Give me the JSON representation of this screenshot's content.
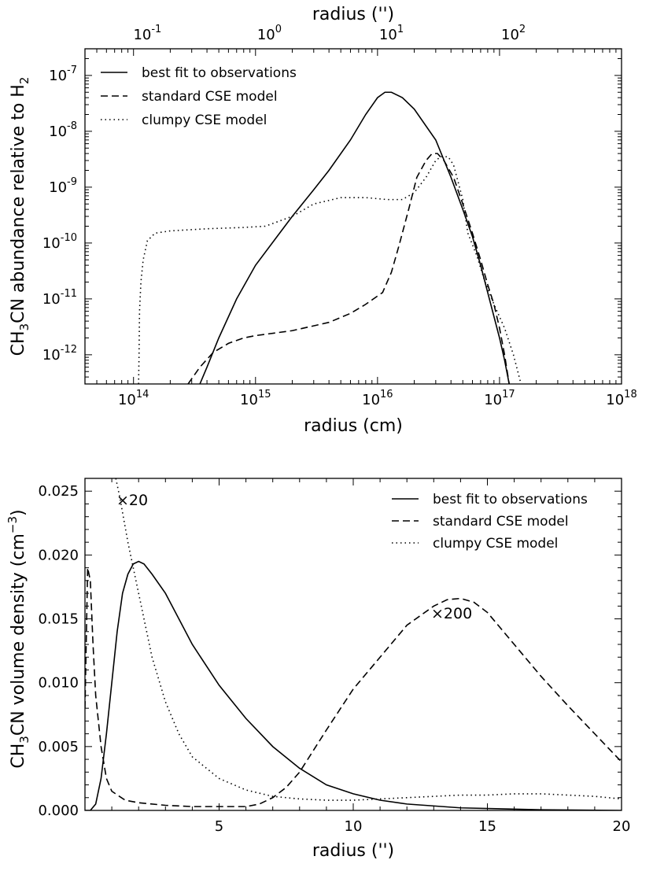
{
  "chart_data": [
    {
      "type": "line",
      "title": "",
      "xscale": "log",
      "yscale": "log",
      "xlabel": "radius (cm)",
      "ylabel_parts": [
        "CH",
        "3",
        "CN abundance relative to H",
        "2"
      ],
      "top_xlabel": "radius ('')",
      "xlim": [
        40000000000000.0,
        1e+18
      ],
      "ylim": [
        3e-13,
        3e-07
      ],
      "x_ticks": [
        {
          "value": 100000000000000.0,
          "base": "10",
          "exp": "14"
        },
        {
          "value": 1000000000000000.0,
          "base": "10",
          "exp": "15"
        },
        {
          "value": 1e+16,
          "base": "10",
          "exp": "16"
        },
        {
          "value": 1e+17,
          "base": "10",
          "exp": "17"
        },
        {
          "value": 1e+18,
          "base": "10",
          "exp": "18"
        }
      ],
      "y_ticks": [
        {
          "value": 1e-12,
          "base": "10",
          "exp": "-12"
        },
        {
          "value": 1e-11,
          "base": "10",
          "exp": "-11"
        },
        {
          "value": 1e-10,
          "base": "10",
          "exp": "-10"
        },
        {
          "value": 1e-09,
          "base": "10",
          "exp": "-9"
        },
        {
          "value": 1e-08,
          "base": "10",
          "exp": "-8"
        },
        {
          "value": 1e-07,
          "base": "10",
          "exp": "-7"
        }
      ],
      "top_ticks": [
        {
          "value": 130000000000000.0,
          "base": "10",
          "exp": "-1"
        },
        {
          "value": 1300000000000000.0,
          "base": "10",
          "exp": "0"
        },
        {
          "value": 1.3e+16,
          "base": "10",
          "exp": "1"
        },
        {
          "value": 1.3e+17,
          "base": "10",
          "exp": "2"
        }
      ],
      "legend": {
        "position": "top-left"
      },
      "series": [
        {
          "name": "best fit to observations",
          "style": "solid",
          "points": [
            [
              350000000000000.0,
              3e-13
            ],
            [
              400000000000000.0,
              6e-13
            ],
            [
              500000000000000.0,
              2e-12
            ],
            [
              700000000000000.0,
              1e-11
            ],
            [
              1000000000000000.0,
              4e-11
            ],
            [
              1500000000000000.0,
              1.3e-10
            ],
            [
              2000000000000000.0,
              3e-10
            ],
            [
              3000000000000000.0,
              9e-10
            ],
            [
              4000000000000000.0,
              2e-09
            ],
            [
              6000000000000000.0,
              7e-09
            ],
            [
              8000000000000000.0,
              2e-08
            ],
            [
              1e+16,
              4e-08
            ],
            [
              1.15e+16,
              5e-08
            ],
            [
              1.3e+16,
              5e-08
            ],
            [
              1.6e+16,
              4e-08
            ],
            [
              2e+16,
              2.5e-08
            ],
            [
              3e+16,
              7e-09
            ],
            [
              4e+16,
              1.5e-09
            ],
            [
              5e+16,
              4e-10
            ],
            [
              6e+16,
              1.3e-10
            ],
            [
              7e+16,
              4e-11
            ],
            [
              8e+16,
              1.3e-11
            ],
            [
              1e+17,
              2e-12
            ],
            [
              1.1e+17,
              8e-13
            ],
            [
              1.2e+17,
              3e-13
            ]
          ]
        },
        {
          "name": "standard CSE model",
          "style": "dashed",
          "points": [
            [
              280000000000000.0,
              3e-13
            ],
            [
              350000000000000.0,
              6e-13
            ],
            [
              450000000000000.0,
              1.1e-12
            ],
            [
              600000000000000.0,
              1.6e-12
            ],
            [
              800000000000000.0,
              2e-12
            ],
            [
              1000000000000000.0,
              2.2e-12
            ],
            [
              2000000000000000.0,
              2.7e-12
            ],
            [
              4000000000000000.0,
              3.8e-12
            ],
            [
              6000000000000000.0,
              5.5e-12
            ],
            [
              8000000000000000.0,
              8e-12
            ],
            [
              1.1e+16,
              1.3e-11
            ],
            [
              1.3e+16,
              3e-11
            ],
            [
              1.5e+16,
              9e-11
            ],
            [
              1.8e+16,
              4e-10
            ],
            [
              2.1e+16,
              1.5e-09
            ],
            [
              2.5e+16,
              3e-09
            ],
            [
              2.8e+16,
              4e-09
            ],
            [
              3.1e+16,
              4e-09
            ],
            [
              3.5e+16,
              3e-09
            ],
            [
              4.2e+16,
              1.5e-09
            ],
            [
              5e+16,
              5e-10
            ],
            [
              6e+16,
              1.5e-10
            ],
            [
              7e+16,
              5e-11
            ],
            [
              8e+16,
              1.8e-11
            ],
            [
              9e+16,
              8e-12
            ],
            [
              1e+17,
              3e-12
            ],
            [
              1.1e+17,
              1e-12
            ],
            [
              1.2e+17,
              3e-13
            ]
          ]
        },
        {
          "name": "clumpy CSE model",
          "style": "dotted",
          "points": [
            [
              110000000000000.0,
              3e-13
            ],
            [
              111000000000000.0,
              1e-12
            ],
            [
              112000000000000.0,
              6e-12
            ],
            [
              115000000000000.0,
              2e-11
            ],
            [
              120000000000000.0,
              5e-11
            ],
            [
              130000000000000.0,
              1.1e-10
            ],
            [
              150000000000000.0,
              1.5e-10
            ],
            [
              200000000000000.0,
              1.65e-10
            ],
            [
              400000000000000.0,
              1.8e-10
            ],
            [
              800000000000000.0,
              1.9e-10
            ],
            [
              1200000000000000.0,
              2e-10
            ],
            [
              2000000000000000.0,
              3e-10
            ],
            [
              3000000000000000.0,
              5e-10
            ],
            [
              5000000000000000.0,
              6.5e-10
            ],
            [
              8000000000000000.0,
              6.5e-10
            ],
            [
              1.2e+16,
              6e-10
            ],
            [
              1.6e+16,
              6e-10
            ],
            [
              2e+16,
              8e-10
            ],
            [
              2.5e+16,
              1.5e-09
            ],
            [
              3e+16,
              3e-09
            ],
            [
              3.3e+16,
              3.5e-09
            ],
            [
              3.8e+16,
              3.5e-09
            ],
            [
              4.2e+16,
              2.5e-09
            ],
            [
              5e+16,
              6e-10
            ],
            [
              5.5e+16,
              1.5e-10
            ],
            [
              6.5e+16,
              6e-11
            ],
            [
              7.5e+16,
              2.2e-11
            ],
            [
              9e+16,
              8e-12
            ],
            [
              1.1e+17,
              3e-12
            ],
            [
              1.3e+17,
              1e-12
            ],
            [
              1.5e+17,
              3e-13
            ]
          ]
        }
      ]
    },
    {
      "type": "line",
      "title": "",
      "xlabel": "radius ('')",
      "ylabel_parts": [
        "CH",
        "3",
        "CN volume density (cm",
        "−3",
        ")"
      ],
      "xlim": [
        0,
        20
      ],
      "ylim": [
        0,
        0.026
      ],
      "x_ticks": [
        5,
        10,
        15,
        20
      ],
      "y_ticks": [
        "0.000",
        "0.005",
        "0.010",
        "0.015",
        "0.020",
        "0.025"
      ],
      "legend": {
        "position": "top-right"
      },
      "annotations": [
        "×20",
        "×200"
      ],
      "series": [
        {
          "name": "best fit to observations",
          "style": "solid",
          "points": [
            [
              0,
              0
            ],
            [
              0.2,
              0
            ],
            [
              0.4,
              0.0005
            ],
            [
              0.6,
              0.0025
            ],
            [
              0.8,
              0.006
            ],
            [
              1,
              0.01
            ],
            [
              1.2,
              0.014
            ],
            [
              1.4,
              0.017
            ],
            [
              1.6,
              0.0185
            ],
            [
              1.8,
              0.0193
            ],
            [
              2,
              0.0195
            ],
            [
              2.2,
              0.0193
            ],
            [
              2.5,
              0.0185
            ],
            [
              3,
              0.017
            ],
            [
              3.5,
              0.015
            ],
            [
              4,
              0.013
            ],
            [
              5,
              0.0098
            ],
            [
              6,
              0.0072
            ],
            [
              7,
              0.005
            ],
            [
              8,
              0.0033
            ],
            [
              9,
              0.002
            ],
            [
              10,
              0.0013
            ],
            [
              11,
              0.0008
            ],
            [
              12,
              0.0005
            ],
            [
              14,
              0.0002
            ],
            [
              17,
              5e-05
            ],
            [
              20,
              0
            ]
          ]
        },
        {
          "name": "standard CSE model",
          "style": "dashed",
          "points": [
            [
              0,
              0.008
            ],
            [
              0.1,
              0.019
            ],
            [
              0.2,
              0.018
            ],
            [
              0.3,
              0.013
            ],
            [
              0.4,
              0.009
            ],
            [
              0.6,
              0.005
            ],
            [
              0.8,
              0.0025
            ],
            [
              1,
              0.0015
            ],
            [
              1.5,
              0.0008
            ],
            [
              2,
              0.0006
            ],
            [
              3,
              0.0004
            ],
            [
              4,
              0.0003
            ],
            [
              5,
              0.0003
            ],
            [
              6,
              0.0003
            ],
            [
              6.5,
              0.0005
            ],
            [
              7,
              0.001
            ],
            [
              7.5,
              0.0018
            ],
            [
              8,
              0.003
            ],
            [
              9,
              0.0063
            ],
            [
              10,
              0.0095
            ],
            [
              11,
              0.012
            ],
            [
              12,
              0.0145
            ],
            [
              13,
              0.016
            ],
            [
              13.5,
              0.0165
            ],
            [
              14,
              0.0166
            ],
            [
              14.5,
              0.0163
            ],
            [
              15,
              0.0155
            ],
            [
              16,
              0.013
            ],
            [
              17,
              0.0105
            ],
            [
              18,
              0.0082
            ],
            [
              19,
              0.006
            ],
            [
              20,
              0.0038
            ]
          ]
        },
        {
          "name": "clumpy CSE model",
          "style": "dotted",
          "points": [
            [
              1.15,
              0.026
            ],
            [
              1.3,
              0.0245
            ],
            [
              1.6,
              0.021
            ],
            [
              2,
              0.017
            ],
            [
              2.5,
              0.012
            ],
            [
              3,
              0.0085
            ],
            [
              3.5,
              0.006
            ],
            [
              4,
              0.0042
            ],
            [
              5,
              0.0025
            ],
            [
              6,
              0.0016
            ],
            [
              7,
              0.0011
            ],
            [
              8,
              0.0009
            ],
            [
              9,
              0.0008
            ],
            [
              10,
              0.0008
            ],
            [
              11,
              0.0009
            ],
            [
              12,
              0.001
            ],
            [
              13,
              0.0011
            ],
            [
              14,
              0.0012
            ],
            [
              15,
              0.0012
            ],
            [
              16,
              0.0013
            ],
            [
              17,
              0.0013
            ],
            [
              18,
              0.0012
            ],
            [
              19,
              0.0011
            ],
            [
              20,
              0.0009
            ]
          ]
        }
      ]
    }
  ]
}
